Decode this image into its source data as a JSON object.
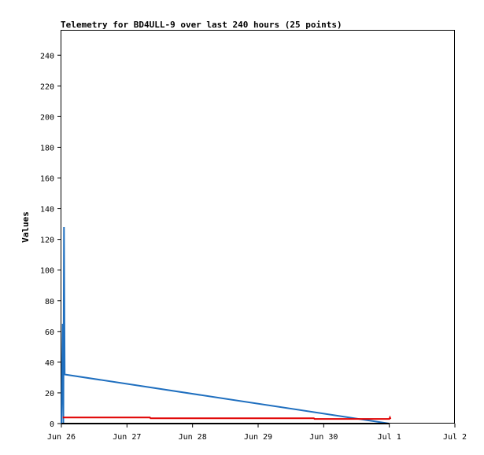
{
  "chart_data": {
    "type": "line",
    "title": "Telemetry for BD4ULL-9 over last 240 hours (25 points)",
    "xlabel": "",
    "ylabel": "Values",
    "xlim": [
      0,
      6
    ],
    "ylim": [
      0,
      256
    ],
    "x_ticks": [
      {
        "value": 0,
        "label": "Jun 26"
      },
      {
        "value": 1,
        "label": "Jun 27"
      },
      {
        "value": 2,
        "label": "Jun 28"
      },
      {
        "value": 3,
        "label": "Jun 29"
      },
      {
        "value": 4,
        "label": "Jun 30"
      },
      {
        "value": 5,
        "label": "Jul 1"
      },
      {
        "value": 6,
        "label": "Jul 2"
      }
    ],
    "y_ticks": [
      0,
      20,
      40,
      60,
      80,
      100,
      120,
      140,
      160,
      180,
      200,
      220,
      240
    ],
    "grid": false,
    "series": [
      {
        "color": "#1f6fbf",
        "x": [
          0.0,
          0.02,
          0.03,
          0.04,
          0.05,
          5.0
        ],
        "y": [
          0,
          65,
          0,
          128,
          32,
          0
        ]
      },
      {
        "color": "#e00000",
        "x": [
          0.02,
          1.35,
          1.36,
          3.85,
          3.86,
          5.0,
          5.01,
          5.02
        ],
        "y": [
          4,
          4,
          3.5,
          3.5,
          3,
          3,
          4,
          3
        ]
      },
      {
        "color": "#000000",
        "x": [
          0.0,
          5.0
        ],
        "y": [
          0,
          0
        ]
      }
    ]
  }
}
